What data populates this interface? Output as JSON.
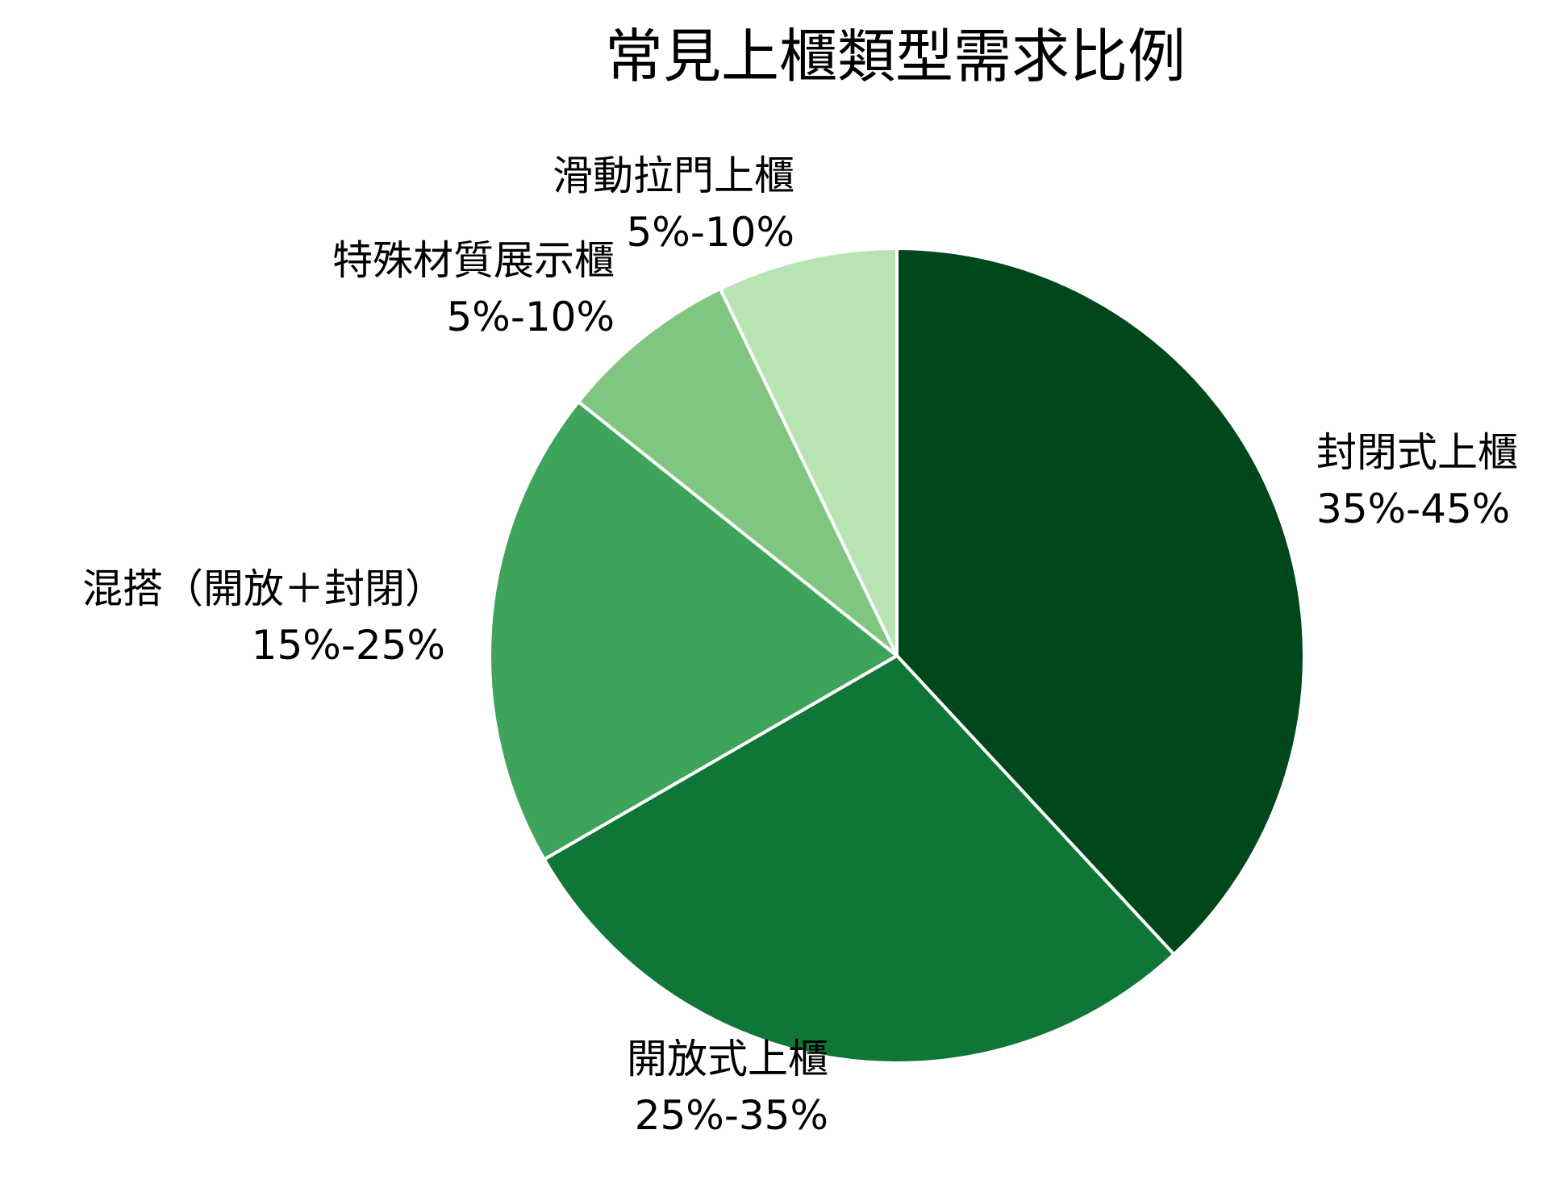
{
  "chart_data": {
    "type": "pie",
    "title": "常見上櫃類型需求比例",
    "slices": [
      {
        "name": "封閉式上櫃",
        "value_label": "35%-45%",
        "value": 40,
        "color": "#00471b"
      },
      {
        "name": "開放式上櫃",
        "value_label": "25%-35%",
        "value": 30,
        "color": "#0f7637"
      },
      {
        "name": "混搭（開放＋封閉）",
        "value_label": "15%-25%",
        "value": 20,
        "color": "#3fa45b"
      },
      {
        "name": "特殊材質展示櫃",
        "value_label": "5%-10%",
        "value": 7.5,
        "color": "#80c680"
      },
      {
        "name": "滑動拉門上櫃",
        "value_label": "5%-10%",
        "value": 7.5,
        "color": "#b8e3b2"
      }
    ]
  }
}
